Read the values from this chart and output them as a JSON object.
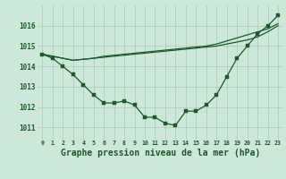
{
  "background_color": "#cde8d8",
  "grid_color": "#aac8b8",
  "line_color": "#1a5c2a",
  "xlabel": "Graphe pression niveau de la mer (hPa)",
  "xlabel_fontsize": 7.0,
  "ylabel_ticks": [
    1011,
    1012,
    1013,
    1014,
    1015,
    1016
  ],
  "xlim": [
    -0.5,
    23.5
  ],
  "ylim": [
    1010.4,
    1017.0
  ],
  "series1": [
    1014.6,
    1014.4,
    1014.0,
    1013.6,
    1013.1,
    1012.6,
    1012.2,
    1012.2,
    1012.3,
    1012.1,
    1011.5,
    1011.5,
    1011.2,
    1011.1,
    1011.8,
    1011.8,
    1012.1,
    1012.6,
    1013.5,
    1014.4,
    1015.0,
    1015.6,
    1016.0,
    1016.5
  ],
  "series2": [
    1014.6,
    1014.5,
    1014.4,
    1014.3,
    1014.35,
    1014.4,
    1014.45,
    1014.5,
    1014.55,
    1014.6,
    1014.65,
    1014.7,
    1014.75,
    1014.8,
    1014.85,
    1014.9,
    1014.95,
    1015.0,
    1015.1,
    1015.2,
    1015.3,
    1015.45,
    1015.7,
    1016.0
  ],
  "series3": [
    1014.6,
    1014.5,
    1014.4,
    1014.3,
    1014.35,
    1014.4,
    1014.5,
    1014.55,
    1014.6,
    1014.65,
    1014.7,
    1014.75,
    1014.8,
    1014.85,
    1014.9,
    1014.95,
    1015.0,
    1015.1,
    1015.25,
    1015.4,
    1015.55,
    1015.7,
    1015.85,
    1016.1
  ]
}
